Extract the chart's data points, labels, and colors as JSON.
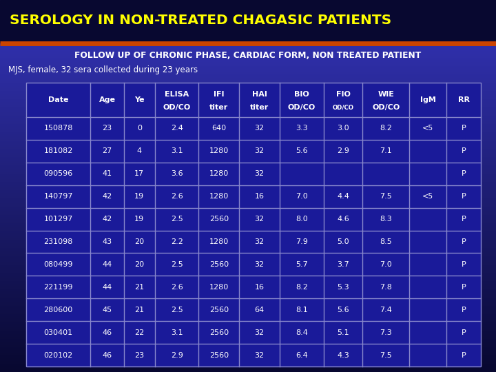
{
  "title": "SEROLOGY IN NON-TREATED CHAGASIC PATIENTS",
  "subtitle": "FOLLOW UP OF CHRONIC PHASE, CARDIAC FORM, NON TREATED PATIENT",
  "subtitle2": "MJS, female, 32 sera collected during 23 years",
  "bg_top": "#080830",
  "bg_bottom": "#3535bb",
  "title_color": "#ffff00",
  "subtitle_color": "#ffffff",
  "subtitle2_color": "#ffffff",
  "orange_line_color": "#cc4400",
  "table_bg": "#1a1a99",
  "table_border": "#8888cc",
  "cell_text_color": "#ffffff",
  "header_text_color": "#ffffff",
  "col_headers_line1": [
    "Date",
    "Age",
    "Ye",
    "ELISA",
    "IFI",
    "HAI",
    "BIO",
    "FIO",
    "WIE",
    "IgM",
    "RR"
  ],
  "col_headers_line2": [
    "",
    "",
    "",
    "OD/CO",
    "titer",
    "titer",
    "OD/CO",
    "OD/CO",
    "OD/CO",
    "",
    ""
  ],
  "col_widths_rel": [
    1.35,
    0.7,
    0.65,
    0.92,
    0.85,
    0.85,
    0.92,
    0.82,
    0.98,
    0.78,
    0.72
  ],
  "rows": [
    [
      "150878",
      "23",
      "0",
      "2.4",
      "640",
      "32",
      "3.3",
      "3.0",
      "8.2",
      "<5",
      "P"
    ],
    [
      "181082",
      "27",
      "4",
      "3.1",
      "1280",
      "32",
      "5.6",
      "2.9",
      "7.1",
      "",
      "P"
    ],
    [
      "090596",
      "41",
      "17",
      "3.6",
      "1280",
      "32",
      "",
      "",
      "",
      "",
      "P"
    ],
    [
      "140797",
      "42",
      "19",
      "2.6",
      "1280",
      "16",
      "7.0",
      "4.4",
      "7.5",
      "<5",
      "P"
    ],
    [
      "101297",
      "42",
      "19",
      "2.5",
      "2560",
      "32",
      "8.0",
      "4.6",
      "8.3",
      "",
      "P"
    ],
    [
      "231098",
      "43",
      "20",
      "2.2",
      "1280",
      "32",
      "7.9",
      "5.0",
      "8.5",
      "",
      "P"
    ],
    [
      "080499",
      "44",
      "20",
      "2.5",
      "2560",
      "32",
      "5.7",
      "3.7",
      "7.0",
      "",
      "P"
    ],
    [
      "221199",
      "44",
      "21",
      "2.6",
      "1280",
      "16",
      "8.2",
      "5.3",
      "7.8",
      "",
      "P"
    ],
    [
      "280600",
      "45",
      "21",
      "2.5",
      "2560",
      "64",
      "8.1",
      "5.6",
      "7.4",
      "",
      "P"
    ],
    [
      "030401",
      "46",
      "22",
      "3.1",
      "2560",
      "32",
      "8.4",
      "5.1",
      "7.3",
      "",
      "P"
    ],
    [
      "020102",
      "46",
      "23",
      "2.9",
      "2560",
      "32",
      "6.4",
      "4.3",
      "7.5",
      "",
      "P"
    ]
  ]
}
